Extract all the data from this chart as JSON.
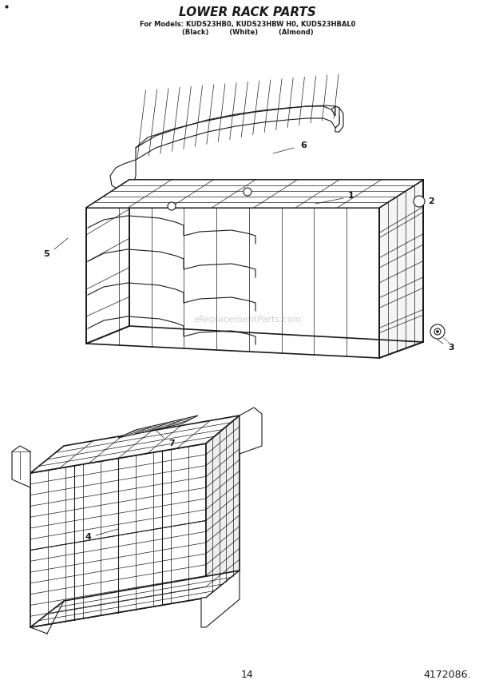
{
  "title": "LOWER RACK PARTS",
  "subtitle_line1": "For Models: KUDS23HB0, KUDS23HBW H0, KUDS23HBAL0",
  "subtitle_line2": "(Black)       (White)       (Almond)",
  "page_number": "14",
  "part_number": "4172086.",
  "background_color": "#ffffff",
  "line_color": "#1a1a1a",
  "watermark_text": "eReplacementParts.com",
  "fig_width": 6.2,
  "fig_height": 8.61,
  "dpi": 100
}
